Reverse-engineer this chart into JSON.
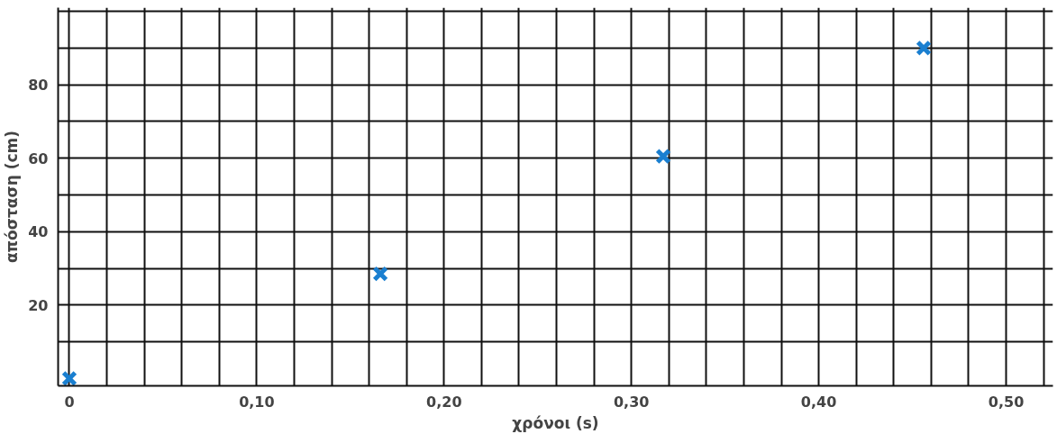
{
  "chart_data": {
    "type": "scatter",
    "xlabel": "χρόνοι (s)",
    "ylabel": "απόσταση (cm)",
    "x": [
      0,
      0.166,
      0.317,
      0.456
    ],
    "series": [
      {
        "color": "#1a7fd0",
        "values": [
          0,
          28.5,
          60.5,
          90
        ]
      }
    ],
    "marker": "cross",
    "grid": true,
    "xlim": [
      -0.006,
      0.525
    ],
    "ylim": [
      -2,
      101
    ],
    "xticks": [
      {
        "value": 0,
        "label": "0"
      },
      {
        "value": 0.02,
        "label": null
      },
      {
        "value": 0.04,
        "label": null
      },
      {
        "value": 0.06,
        "label": null
      },
      {
        "value": 0.08,
        "label": null
      },
      {
        "value": 0.1,
        "label": "0,10"
      },
      {
        "value": 0.12,
        "label": null
      },
      {
        "value": 0.14,
        "label": null
      },
      {
        "value": 0.16,
        "label": null
      },
      {
        "value": 0.18,
        "label": null
      },
      {
        "value": 0.2,
        "label": "0,20"
      },
      {
        "value": 0.22,
        "label": null
      },
      {
        "value": 0.24,
        "label": null
      },
      {
        "value": 0.26,
        "label": null
      },
      {
        "value": 0.28,
        "label": null
      },
      {
        "value": 0.3,
        "label": "0,30"
      },
      {
        "value": 0.32,
        "label": null
      },
      {
        "value": 0.34,
        "label": null
      },
      {
        "value": 0.36,
        "label": null
      },
      {
        "value": 0.38,
        "label": null
      },
      {
        "value": 0.4,
        "label": "0,40"
      },
      {
        "value": 0.42,
        "label": null
      },
      {
        "value": 0.44,
        "label": null
      },
      {
        "value": 0.46,
        "label": null
      },
      {
        "value": 0.48,
        "label": null
      },
      {
        "value": 0.5,
        "label": "0,50"
      },
      {
        "value": 0.52,
        "label": null
      }
    ],
    "yticks": [
      {
        "value": 10,
        "label": null
      },
      20,
      {
        "value": 30,
        "label": null
      },
      40,
      {
        "value": 50,
        "label": null
      },
      60,
      {
        "value": 70,
        "label": null
      },
      80,
      {
        "value": 90,
        "label": null
      },
      {
        "value": 100,
        "label": null
      }
    ]
  }
}
